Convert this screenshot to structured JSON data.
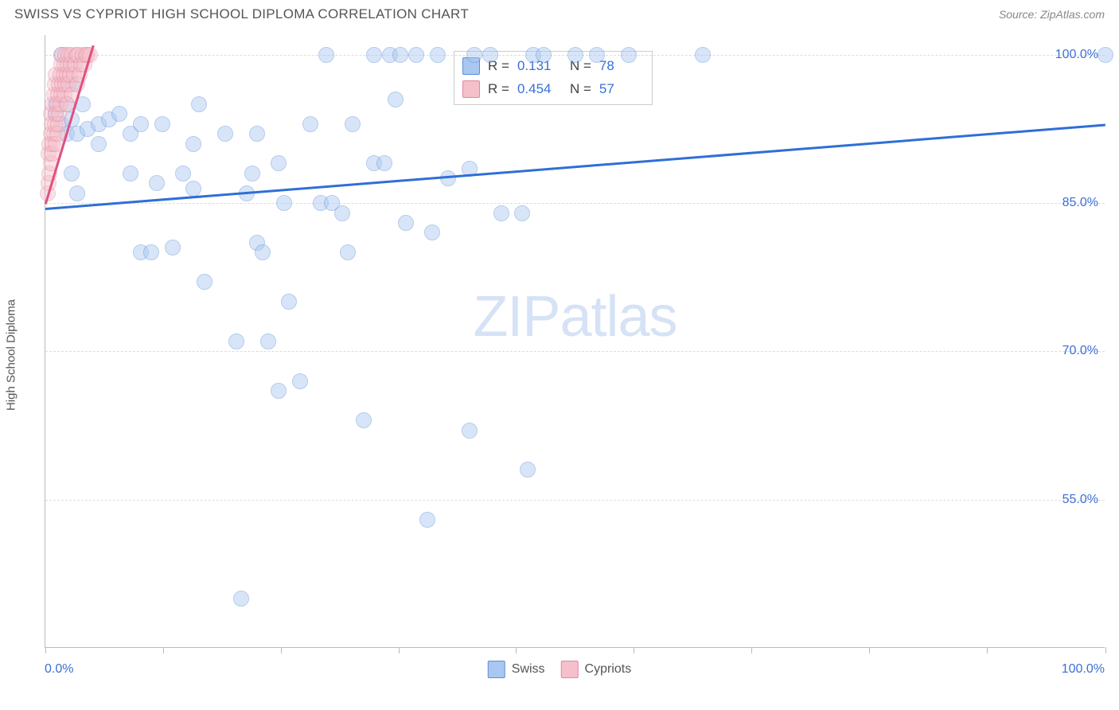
{
  "header": {
    "title": "SWISS VS CYPRIOT HIGH SCHOOL DIPLOMA CORRELATION CHART",
    "source": "Source: ZipAtlas.com"
  },
  "chart": {
    "type": "scatter",
    "yaxis_label": "High School Diploma",
    "xlim": [
      0,
      100
    ],
    "ylim": [
      40,
      102
    ],
    "x_label_min": "0.0%",
    "x_label_max": "100.0%",
    "y_ticks": [
      55,
      70,
      85,
      100
    ],
    "y_tick_labels": [
      "55.0%",
      "70.0%",
      "85.0%",
      "100.0%"
    ],
    "x_ticks": [
      0,
      11.1,
      22.2,
      33.3,
      44.4,
      55.5,
      66.6,
      77.7,
      88.8,
      100
    ],
    "grid_color": "#dddddd",
    "axis_color": "#bbbbbb",
    "background_color": "#ffffff",
    "tick_label_color": "#3b6fd6",
    "tick_label_fontsize": 16,
    "axis_label_color": "#555555",
    "axis_label_fontsize": 15,
    "point_radius": 10,
    "point_opacity": 0.45,
    "trend_line_width": 2.5,
    "watermark": {
      "text_bold": "ZIP",
      "text_light": "atlas",
      "color": "#d6e2f5",
      "fontsize": 72
    },
    "series": [
      {
        "name": "Swiss",
        "fill_color": "#a9c7f0",
        "stroke_color": "#5a8fd6",
        "line_color": "#2f6fd6",
        "R": "0.131",
        "N": "78",
        "trend": {
          "x1": 0,
          "y1": 84.5,
          "x2": 100,
          "y2": 93.0
        },
        "points": [
          [
            1,
            95
          ],
          [
            1,
            94
          ],
          [
            1.5,
            93
          ],
          [
            1.5,
            100
          ],
          [
            2,
            95
          ],
          [
            2,
            92
          ],
          [
            2.5,
            93.5
          ],
          [
            2.5,
            97
          ],
          [
            2.5,
            88
          ],
          [
            3,
            86
          ],
          [
            3,
            92
          ],
          [
            3.5,
            95
          ],
          [
            4,
            92.5
          ],
          [
            5,
            91
          ],
          [
            5,
            93
          ],
          [
            6,
            93.5
          ],
          [
            7,
            94
          ],
          [
            8,
            92
          ],
          [
            8,
            88
          ],
          [
            9,
            80
          ],
          [
            9,
            93
          ],
          [
            10,
            80
          ],
          [
            10.5,
            87
          ],
          [
            11,
            93
          ],
          [
            12,
            80.5
          ],
          [
            13,
            88
          ],
          [
            14,
            91
          ],
          [
            14,
            86.5
          ],
          [
            14.5,
            95
          ],
          [
            15,
            77
          ],
          [
            17,
            92
          ],
          [
            18,
            71
          ],
          [
            18.5,
            45
          ],
          [
            19,
            86
          ],
          [
            19.5,
            88
          ],
          [
            20,
            92
          ],
          [
            20,
            81
          ],
          [
            20.5,
            80
          ],
          [
            21,
            71
          ],
          [
            22,
            66
          ],
          [
            22,
            89
          ],
          [
            22.5,
            85
          ],
          [
            23,
            75
          ],
          [
            24,
            67
          ],
          [
            25,
            93
          ],
          [
            26,
            85
          ],
          [
            26.5,
            100
          ],
          [
            27,
            85
          ],
          [
            28,
            84
          ],
          [
            28.5,
            80
          ],
          [
            29,
            93
          ],
          [
            30,
            63
          ],
          [
            31,
            89
          ],
          [
            31,
            100
          ],
          [
            32,
            89
          ],
          [
            32.5,
            100
          ],
          [
            33,
            95.5
          ],
          [
            33.5,
            100
          ],
          [
            34,
            83
          ],
          [
            35,
            100
          ],
          [
            36,
            53
          ],
          [
            36.5,
            82
          ],
          [
            37,
            100
          ],
          [
            38,
            87.5
          ],
          [
            40,
            62
          ],
          [
            40,
            88.5
          ],
          [
            40.5,
            100
          ],
          [
            42,
            100
          ],
          [
            43,
            84
          ],
          [
            45,
            84
          ],
          [
            45.5,
            58
          ],
          [
            46,
            100
          ],
          [
            47,
            100
          ],
          [
            50,
            100
          ],
          [
            52,
            100
          ],
          [
            55,
            100
          ],
          [
            62,
            100
          ],
          [
            100,
            100
          ]
        ]
      },
      {
        "name": "Cypriots",
        "fill_color": "#f5c0ca",
        "stroke_color": "#e286a0",
        "line_color": "#e05080",
        "R": "0.454",
        "N": "57",
        "trend": {
          "x1": 0,
          "y1": 85,
          "x2": 4.5,
          "y2": 101
        },
        "points": [
          [
            0.2,
            86
          ],
          [
            0.3,
            87
          ],
          [
            0.3,
            90
          ],
          [
            0.4,
            88
          ],
          [
            0.4,
            91
          ],
          [
            0.5,
            89
          ],
          [
            0.5,
            92
          ],
          [
            0.5,
            94
          ],
          [
            0.6,
            90
          ],
          [
            0.6,
            93
          ],
          [
            0.7,
            91
          ],
          [
            0.7,
            95
          ],
          [
            0.8,
            92
          ],
          [
            0.8,
            96
          ],
          [
            0.9,
            93
          ],
          [
            0.9,
            97
          ],
          [
            1.0,
            91
          ],
          [
            1.0,
            94
          ],
          [
            1.0,
            98
          ],
          [
            1.1,
            95
          ],
          [
            1.1,
            92
          ],
          [
            1.2,
            96
          ],
          [
            1.2,
            93
          ],
          [
            1.3,
            97
          ],
          [
            1.3,
            94
          ],
          [
            1.4,
            98
          ],
          [
            1.4,
            95
          ],
          [
            1.5,
            99
          ],
          [
            1.5,
            96
          ],
          [
            1.6,
            100
          ],
          [
            1.6,
            97
          ],
          [
            1.7,
            98
          ],
          [
            1.8,
            99
          ],
          [
            1.8,
            96
          ],
          [
            1.9,
            100
          ],
          [
            1.9,
            97
          ],
          [
            2.0,
            98
          ],
          [
            2.0,
            95
          ],
          [
            2.1,
            99
          ],
          [
            2.2,
            100
          ],
          [
            2.2,
            97
          ],
          [
            2.3,
            98
          ],
          [
            2.4,
            99
          ],
          [
            2.5,
            100
          ],
          [
            2.5,
            96
          ],
          [
            2.7,
            98
          ],
          [
            2.8,
            99
          ],
          [
            2.9,
            100
          ],
          [
            3.0,
            97
          ],
          [
            3.1,
            100
          ],
          [
            3.2,
            98
          ],
          [
            3.4,
            99
          ],
          [
            3.5,
            100
          ],
          [
            3.7,
            99
          ],
          [
            3.8,
            100
          ],
          [
            4.0,
            100
          ],
          [
            4.2,
            100
          ]
        ]
      }
    ]
  },
  "legend_top": {
    "r_label": "R =",
    "n_label": "N ="
  },
  "legend_bottom": {
    "items": [
      "Swiss",
      "Cypriots"
    ]
  }
}
